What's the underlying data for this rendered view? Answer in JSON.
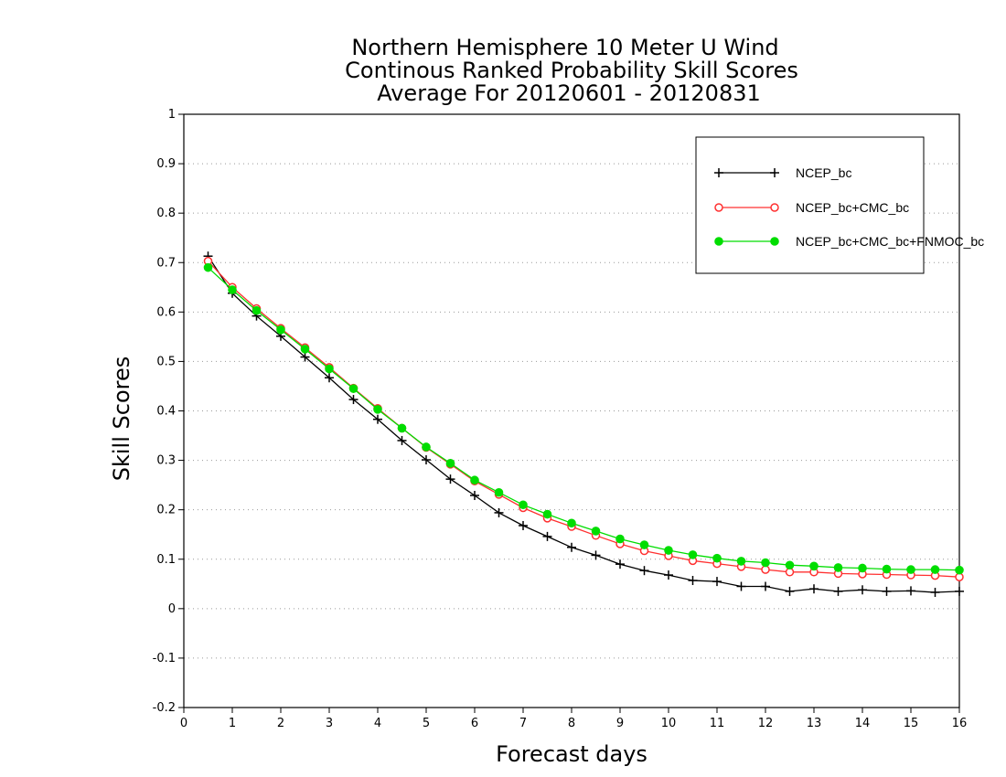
{
  "chart_data": {
    "type": "line",
    "title": [
      "Northern Hemisphere 10 Meter U Wind",
      "Continous Ranked Probability Skill Scores",
      "Average For 20120601 - 20120831"
    ],
    "xlabel": "Forecast days",
    "ylabel": "Skill Scores",
    "xlim": [
      0,
      16
    ],
    "ylim": [
      -0.2,
      1
    ],
    "xticks": [
      0,
      1,
      2,
      3,
      4,
      5,
      6,
      7,
      8,
      9,
      10,
      11,
      12,
      13,
      14,
      15,
      16
    ],
    "yticks": [
      -0.2,
      -0.1,
      0,
      0.1,
      0.2,
      0.3,
      0.4,
      0.5,
      0.6,
      0.7,
      0.8,
      0.9,
      1
    ],
    "ytick_labels": [
      "-0.2",
      "-0.1",
      "0",
      "0.1",
      "0.2",
      "0.3",
      "0.4",
      "0.5",
      "0.6",
      "0.7",
      "0.8",
      "0.9",
      "1"
    ],
    "grid": "horizontal dotted",
    "legend_position": "top-right",
    "x": [
      0.5,
      1,
      1.5,
      2,
      2.5,
      3,
      3.5,
      4,
      4.5,
      5,
      5.5,
      6,
      6.5,
      7,
      7.5,
      8,
      8.5,
      9,
      9.5,
      10,
      10.5,
      11,
      11.5,
      12,
      12.5,
      13,
      13.5,
      14,
      14.5,
      15,
      15.5,
      16
    ],
    "series": [
      {
        "name": "NCEP_bc",
        "color": "#000000",
        "marker": "plus",
        "values": [
          0.713,
          0.638,
          0.592,
          0.551,
          0.509,
          0.467,
          0.423,
          0.383,
          0.34,
          0.301,
          0.262,
          0.229,
          0.194,
          0.168,
          0.146,
          0.124,
          0.108,
          0.09,
          0.077,
          0.068,
          0.057,
          0.055,
          0.045,
          0.045,
          0.035,
          0.04,
          0.035,
          0.038,
          0.035,
          0.036,
          0.033,
          0.035
        ]
      },
      {
        "name": "NCEP_bc+CMC_bc",
        "color": "#ff3030",
        "marker": "open-circle",
        "values": [
          0.703,
          0.65,
          0.607,
          0.567,
          0.528,
          0.488,
          0.446,
          0.405,
          0.365,
          0.326,
          0.292,
          0.258,
          0.231,
          0.204,
          0.183,
          0.166,
          0.148,
          0.131,
          0.117,
          0.107,
          0.097,
          0.091,
          0.085,
          0.079,
          0.074,
          0.074,
          0.071,
          0.07,
          0.069,
          0.068,
          0.067,
          0.064
        ]
      },
      {
        "name": "NCEP_bc+CMC_bc+FNMOC_bc",
        "color": "#00dd00",
        "marker": "filled-circle",
        "values": [
          0.69,
          0.645,
          0.603,
          0.564,
          0.525,
          0.485,
          0.445,
          0.403,
          0.365,
          0.327,
          0.294,
          0.26,
          0.235,
          0.21,
          0.191,
          0.173,
          0.157,
          0.141,
          0.129,
          0.118,
          0.109,
          0.102,
          0.096,
          0.093,
          0.088,
          0.086,
          0.083,
          0.082,
          0.08,
          0.079,
          0.079,
          0.078
        ]
      }
    ]
  }
}
